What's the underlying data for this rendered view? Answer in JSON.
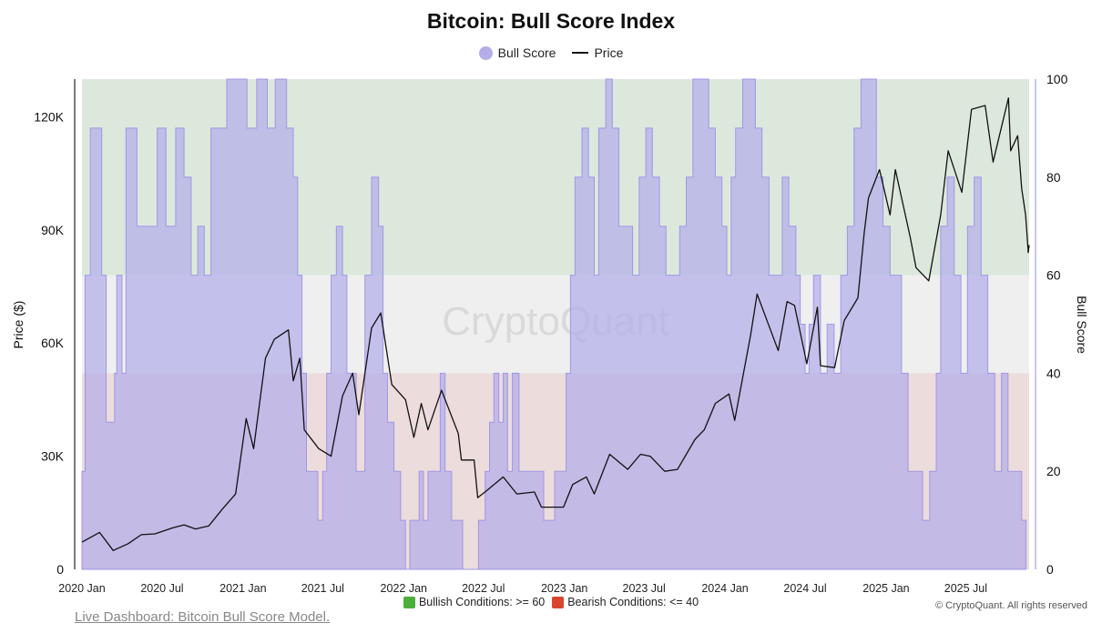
{
  "page": {
    "title": "Bitcoin: Bull Score Index",
    "watermark": "CryptoQuant",
    "footer_link": "Live Dashboard: Bitcoin Bull Score Model.",
    "conditions_bullish": "Bullish Conditions: >= 60",
    "conditions_bearish": "Bearish Conditions: <= 40",
    "copyright": "© CryptoQuant. All rights reserved"
  },
  "chart_data": {
    "type": "area",
    "title": "Bitcoin: Bull Score Index",
    "legend": [
      {
        "name": "Bull Score",
        "color": "#b3adea",
        "symbol": "circle"
      },
      {
        "name": "Price",
        "color": "#111111",
        "symbol": "line"
      }
    ],
    "legend_position": "top-center",
    "y_left": {
      "label": "Price ($)",
      "range": [
        0,
        130000
      ],
      "ticks": [
        0,
        30000,
        60000,
        90000,
        120000
      ],
      "tick_labels": [
        "0",
        "30K",
        "60K",
        "90K",
        "120K"
      ]
    },
    "y_right": {
      "label": "Bull Score",
      "range": [
        0,
        100
      ],
      "ticks": [
        0,
        20,
        40,
        60,
        80,
        100
      ],
      "tick_labels": [
        "0",
        "20",
        "40",
        "60",
        "80",
        "100"
      ]
    },
    "x_axis": {
      "range": [
        "2020-01-01",
        "2025-11-22"
      ],
      "ticks": [
        "2020-01-01",
        "2020-07-01",
        "2021-01-01",
        "2021-07-01",
        "2022-01-01",
        "2022-07-01",
        "2023-01-01",
        "2023-07-01",
        "2024-01-01",
        "2024-07-01",
        "2025-01-01",
        "2025-07-01"
      ],
      "tick_labels": [
        "2020 Jan",
        "2020 Jul",
        "2021 Jan",
        "2021 Jul",
        "2022 Jan",
        "2022 Jul",
        "2023 Jan",
        "2023 Jul",
        "2024 Jan",
        "2024 Jul",
        "2025 Jan",
        "2025 Jul"
      ]
    },
    "bands": [
      {
        "from": 60,
        "to": 100,
        "color": "#dde8dd"
      },
      {
        "from": 40,
        "to": 60,
        "color": "#efefef"
      },
      {
        "from": 0,
        "to": 40,
        "color": "#ecdcdb"
      }
    ],
    "grid": false,
    "series": [
      {
        "name": "Bull Score",
        "color": "#b3adea",
        "points": [
          [
            "2020-01-01",
            20
          ],
          [
            "2020-01-08",
            60
          ],
          [
            "2020-01-20",
            90
          ],
          [
            "2020-02-05",
            90
          ],
          [
            "2020-02-15",
            60
          ],
          [
            "2020-02-25",
            30
          ],
          [
            "2020-03-05",
            30
          ],
          [
            "2020-03-15",
            40
          ],
          [
            "2020-03-20",
            60
          ],
          [
            "2020-04-01",
            40
          ],
          [
            "2020-04-10",
            90
          ],
          [
            "2020-04-25",
            90
          ],
          [
            "2020-05-05",
            70
          ],
          [
            "2020-06-01",
            70
          ],
          [
            "2020-06-20",
            90
          ],
          [
            "2020-07-10",
            70
          ],
          [
            "2020-08-01",
            90
          ],
          [
            "2020-08-20",
            80
          ],
          [
            "2020-09-05",
            60
          ],
          [
            "2020-09-20",
            70
          ],
          [
            "2020-10-05",
            60
          ],
          [
            "2020-10-20",
            90
          ],
          [
            "2020-11-10",
            90
          ],
          [
            "2020-11-25",
            100
          ],
          [
            "2020-12-20",
            100
          ],
          [
            "2021-01-10",
            90
          ],
          [
            "2021-02-01",
            100
          ],
          [
            "2021-02-25",
            90
          ],
          [
            "2021-03-15",
            100
          ],
          [
            "2021-04-10",
            90
          ],
          [
            "2021-04-25",
            80
          ],
          [
            "2021-05-05",
            60
          ],
          [
            "2021-05-15",
            40
          ],
          [
            "2021-05-25",
            20
          ],
          [
            "2021-06-10",
            20
          ],
          [
            "2021-06-20",
            10
          ],
          [
            "2021-07-01",
            20
          ],
          [
            "2021-07-10",
            40
          ],
          [
            "2021-07-20",
            60
          ],
          [
            "2021-08-01",
            70
          ],
          [
            "2021-08-15",
            60
          ],
          [
            "2021-08-25",
            40
          ],
          [
            "2021-09-05",
            40
          ],
          [
            "2021-09-15",
            20
          ],
          [
            "2021-09-25",
            20
          ],
          [
            "2021-10-05",
            60
          ],
          [
            "2021-10-20",
            80
          ],
          [
            "2021-11-05",
            70
          ],
          [
            "2021-11-15",
            40
          ],
          [
            "2021-11-25",
            30
          ],
          [
            "2021-12-10",
            20
          ],
          [
            "2021-12-25",
            10
          ],
          [
            "2022-01-05",
            0
          ],
          [
            "2022-01-15",
            10
          ],
          [
            "2022-01-25",
            10
          ],
          [
            "2022-02-05",
            20
          ],
          [
            "2022-02-15",
            10
          ],
          [
            "2022-02-25",
            20
          ],
          [
            "2022-03-10",
            20
          ],
          [
            "2022-03-25",
            40
          ],
          [
            "2022-04-05",
            20
          ],
          [
            "2022-04-20",
            10
          ],
          [
            "2022-05-01",
            10
          ],
          [
            "2022-05-15",
            0
          ],
          [
            "2022-06-01",
            0
          ],
          [
            "2022-06-20",
            10
          ],
          [
            "2022-07-05",
            20
          ],
          [
            "2022-07-15",
            30
          ],
          [
            "2022-07-25",
            40
          ],
          [
            "2022-08-05",
            30
          ],
          [
            "2022-08-15",
            40
          ],
          [
            "2022-08-25",
            20
          ],
          [
            "2022-09-05",
            40
          ],
          [
            "2022-09-20",
            20
          ],
          [
            "2022-10-05",
            20
          ],
          [
            "2022-11-01",
            20
          ],
          [
            "2022-11-15",
            10
          ],
          [
            "2022-11-25",
            10
          ],
          [
            "2022-12-10",
            20
          ],
          [
            "2022-12-25",
            20
          ],
          [
            "2023-01-05",
            40
          ],
          [
            "2023-01-15",
            60
          ],
          [
            "2023-01-25",
            80
          ],
          [
            "2023-02-10",
            90
          ],
          [
            "2023-02-25",
            80
          ],
          [
            "2023-03-10",
            60
          ],
          [
            "2023-03-20",
            90
          ],
          [
            "2023-04-05",
            100
          ],
          [
            "2023-04-20",
            90
          ],
          [
            "2023-05-05",
            70
          ],
          [
            "2023-05-20",
            70
          ],
          [
            "2023-06-05",
            60
          ],
          [
            "2023-06-20",
            80
          ],
          [
            "2023-07-05",
            90
          ],
          [
            "2023-07-20",
            80
          ],
          [
            "2023-08-05",
            70
          ],
          [
            "2023-08-20",
            60
          ],
          [
            "2023-09-05",
            60
          ],
          [
            "2023-09-20",
            70
          ],
          [
            "2023-10-05",
            80
          ],
          [
            "2023-10-20",
            100
          ],
          [
            "2023-11-10",
            100
          ],
          [
            "2023-11-25",
            90
          ],
          [
            "2023-12-10",
            80
          ],
          [
            "2023-12-25",
            70
          ],
          [
            "2024-01-05",
            60
          ],
          [
            "2024-01-15",
            80
          ],
          [
            "2024-01-25",
            90
          ],
          [
            "2024-02-10",
            100
          ],
          [
            "2024-02-25",
            100
          ],
          [
            "2024-03-10",
            90
          ],
          [
            "2024-03-25",
            80
          ],
          [
            "2024-04-10",
            60
          ],
          [
            "2024-04-25",
            60
          ],
          [
            "2024-05-10",
            80
          ],
          [
            "2024-05-25",
            70
          ],
          [
            "2024-06-10",
            60
          ],
          [
            "2024-06-20",
            50
          ],
          [
            "2024-07-01",
            40
          ],
          [
            "2024-07-10",
            50
          ],
          [
            "2024-07-20",
            60
          ],
          [
            "2024-08-05",
            40
          ],
          [
            "2024-08-20",
            50
          ],
          [
            "2024-09-05",
            40
          ],
          [
            "2024-09-20",
            60
          ],
          [
            "2024-10-05",
            70
          ],
          [
            "2024-10-20",
            90
          ],
          [
            "2024-11-05",
            100
          ],
          [
            "2024-11-25",
            100
          ],
          [
            "2024-12-10",
            80
          ],
          [
            "2024-12-25",
            70
          ],
          [
            "2025-01-10",
            60
          ],
          [
            "2025-01-25",
            60
          ],
          [
            "2025-02-05",
            40
          ],
          [
            "2025-02-20",
            20
          ],
          [
            "2025-03-10",
            20
          ],
          [
            "2025-03-25",
            10
          ],
          [
            "2025-04-10",
            20
          ],
          [
            "2025-04-25",
            40
          ],
          [
            "2025-05-05",
            70
          ],
          [
            "2025-05-20",
            80
          ],
          [
            "2025-06-05",
            60
          ],
          [
            "2025-06-20",
            40
          ],
          [
            "2025-07-05",
            70
          ],
          [
            "2025-07-20",
            80
          ],
          [
            "2025-08-05",
            60
          ],
          [
            "2025-08-20",
            40
          ],
          [
            "2025-09-05",
            20
          ],
          [
            "2025-09-20",
            40
          ],
          [
            "2025-10-05",
            20
          ],
          [
            "2025-10-20",
            20
          ],
          [
            "2025-11-05",
            10
          ],
          [
            "2025-11-15",
            0
          ]
        ]
      },
      {
        "name": "Price",
        "color": "#111111",
        "points": [
          [
            "2020-01-01",
            7200
          ],
          [
            "2020-02-10",
            9800
          ],
          [
            "2020-03-12",
            5000
          ],
          [
            "2020-04-15",
            6800
          ],
          [
            "2020-05-15",
            9200
          ],
          [
            "2020-06-15",
            9400
          ],
          [
            "2020-07-25",
            11000
          ],
          [
            "2020-08-20",
            11800
          ],
          [
            "2020-09-15",
            10700
          ],
          [
            "2020-10-15",
            11500
          ],
          [
            "2020-11-15",
            16000
          ],
          [
            "2020-12-15",
            20000
          ],
          [
            "2021-01-08",
            40000
          ],
          [
            "2021-01-25",
            32000
          ],
          [
            "2021-02-21",
            56000
          ],
          [
            "2021-03-13",
            61000
          ],
          [
            "2021-04-14",
            63500
          ],
          [
            "2021-04-25",
            50000
          ],
          [
            "2021-05-10",
            56000
          ],
          [
            "2021-05-20",
            37000
          ],
          [
            "2021-06-22",
            32000
          ],
          [
            "2021-07-20",
            30000
          ],
          [
            "2021-08-15",
            46000
          ],
          [
            "2021-09-07",
            52000
          ],
          [
            "2021-09-21",
            41000
          ],
          [
            "2021-10-20",
            64000
          ],
          [
            "2021-11-10",
            68000
          ],
          [
            "2021-12-05",
            49000
          ],
          [
            "2022-01-05",
            45000
          ],
          [
            "2022-01-24",
            35000
          ],
          [
            "2022-02-10",
            44000
          ],
          [
            "2022-02-25",
            37000
          ],
          [
            "2022-03-28",
            47500
          ],
          [
            "2022-05-05",
            36000
          ],
          [
            "2022-05-12",
            29000
          ],
          [
            "2022-06-10",
            29000
          ],
          [
            "2022-06-18",
            19000
          ],
          [
            "2022-07-10",
            21000
          ],
          [
            "2022-08-15",
            24500
          ],
          [
            "2022-09-15",
            20000
          ],
          [
            "2022-10-25",
            20500
          ],
          [
            "2022-11-10",
            16500
          ],
          [
            "2022-12-30",
            16500
          ],
          [
            "2023-01-20",
            22500
          ],
          [
            "2023-02-20",
            24500
          ],
          [
            "2023-03-10",
            20000
          ],
          [
            "2023-04-14",
            30500
          ],
          [
            "2023-05-25",
            26500
          ],
          [
            "2023-06-23",
            30500
          ],
          [
            "2023-07-15",
            30000
          ],
          [
            "2023-08-17",
            26000
          ],
          [
            "2023-09-15",
            26500
          ],
          [
            "2023-10-25",
            34500
          ],
          [
            "2023-11-15",
            37000
          ],
          [
            "2023-12-10",
            44000
          ],
          [
            "2024-01-10",
            46500
          ],
          [
            "2024-01-23",
            39500
          ],
          [
            "2024-02-28",
            62000
          ],
          [
            "2024-03-14",
            73000
          ],
          [
            "2024-05-01",
            58000
          ],
          [
            "2024-05-21",
            71000
          ],
          [
            "2024-06-07",
            70000
          ],
          [
            "2024-07-05",
            54500
          ],
          [
            "2024-07-29",
            69500
          ],
          [
            "2024-08-05",
            54000
          ],
          [
            "2024-09-06",
            53500
          ],
          [
            "2024-09-28",
            66000
          ],
          [
            "2024-10-29",
            72000
          ],
          [
            "2024-11-12",
            89000
          ],
          [
            "2024-11-22",
            98500
          ],
          [
            "2024-12-17",
            106000
          ],
          [
            "2025-01-10",
            94000
          ],
          [
            "2025-01-22",
            106000
          ],
          [
            "2025-02-25",
            88000
          ],
          [
            "2025-03-10",
            80000
          ],
          [
            "2025-04-08",
            76500
          ],
          [
            "2025-05-05",
            94000
          ],
          [
            "2025-05-22",
            111000
          ],
          [
            "2025-06-22",
            100000
          ],
          [
            "2025-07-14",
            122000
          ],
          [
            "2025-08-14",
            123000
          ],
          [
            "2025-09-01",
            108000
          ],
          [
            "2025-10-06",
            125000
          ],
          [
            "2025-10-11",
            111000
          ],
          [
            "2025-10-27",
            115000
          ],
          [
            "2025-11-05",
            101000
          ],
          [
            "2025-11-14",
            94000
          ],
          [
            "2025-11-17",
            89000
          ],
          [
            "2025-11-20",
            84000
          ],
          [
            "2025-11-22",
            86000
          ]
        ]
      }
    ]
  }
}
